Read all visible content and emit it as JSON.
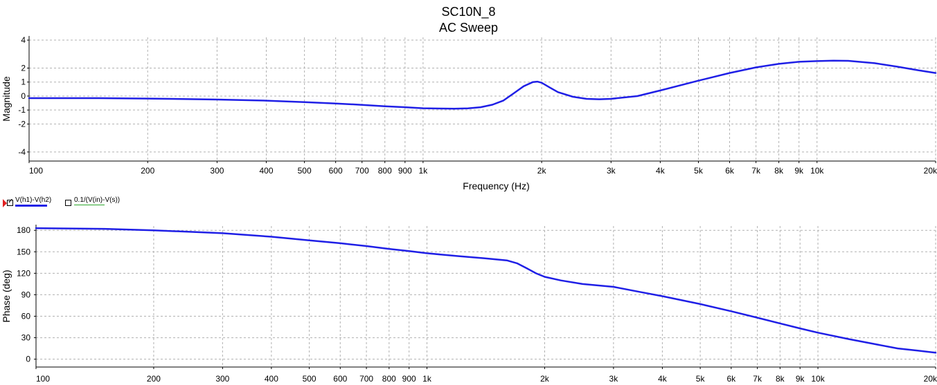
{
  "titles": {
    "main": "SC10N_8",
    "sub": "AC Sweep"
  },
  "legend": [
    {
      "label": "V(h1)-V(h2)",
      "checked": true,
      "color": "#1f1fe6"
    },
    {
      "label": "0.1/(V(in)-V(s))",
      "checked": false,
      "color": "#2aa52a"
    }
  ],
  "colors": {
    "trace": "#1f1fe6",
    "grid": "#b0b0b0"
  },
  "chart_data": [
    {
      "type": "line",
      "xlabel": "Frequency (Hz)",
      "ylabel": "Magnitude",
      "xscale": "log",
      "xlim": [
        100,
        20000
      ],
      "ylim": [
        -4.6,
        4.2
      ],
      "xticks": [
        {
          "v": 100,
          "t": "100"
        },
        {
          "v": 200,
          "t": "200"
        },
        {
          "v": 300,
          "t": "300"
        },
        {
          "v": 400,
          "t": "400"
        },
        {
          "v": 500,
          "t": "500"
        },
        {
          "v": 600,
          "t": "600"
        },
        {
          "v": 700,
          "t": "700"
        },
        {
          "v": 800,
          "t": "800"
        },
        {
          "v": 900,
          "t": "900"
        },
        {
          "v": 1000,
          "t": "1k"
        },
        {
          "v": 2000,
          "t": "2k"
        },
        {
          "v": 3000,
          "t": "3k"
        },
        {
          "v": 4000,
          "t": "4k"
        },
        {
          "v": 5000,
          "t": "5k"
        },
        {
          "v": 6000,
          "t": "6k"
        },
        {
          "v": 7000,
          "t": "7k"
        },
        {
          "v": 8000,
          "t": "8k"
        },
        {
          "v": 9000,
          "t": "9k"
        },
        {
          "v": 10000,
          "t": "10k"
        },
        {
          "v": 20000,
          "t": "20k"
        }
      ],
      "yticks": [
        {
          "v": 4,
          "t": "4"
        },
        {
          "v": 2,
          "t": "2"
        },
        {
          "v": 1,
          "t": "1"
        },
        {
          "v": 0,
          "t": "0"
        },
        {
          "v": -1,
          "t": "-1"
        },
        {
          "v": -2,
          "t": "-2"
        },
        {
          "v": -4,
          "t": "-4"
        }
      ],
      "grid": true,
      "series": [
        {
          "name": "V(h1)-V(h2)",
          "x": [
            100,
            150,
            200,
            300,
            400,
            500,
            600,
            700,
            800,
            900,
            1000,
            1100,
            1200,
            1300,
            1400,
            1500,
            1600,
            1700,
            1800,
            1900,
            1950,
            2000,
            2100,
            2200,
            2400,
            2600,
            2800,
            3000,
            3500,
            4000,
            5000,
            6000,
            7000,
            8000,
            9000,
            10000,
            11000,
            12000,
            14000,
            16000,
            18000,
            20000
          ],
          "y": [
            -0.15,
            -0.15,
            -0.18,
            -0.25,
            -0.33,
            -0.43,
            -0.53,
            -0.63,
            -0.73,
            -0.8,
            -0.87,
            -0.89,
            -0.9,
            -0.88,
            -0.8,
            -0.62,
            -0.32,
            0.2,
            0.7,
            1.0,
            1.03,
            0.95,
            0.6,
            0.28,
            -0.05,
            -0.2,
            -0.23,
            -0.2,
            0.0,
            0.4,
            1.1,
            1.65,
            2.05,
            2.3,
            2.45,
            2.5,
            2.53,
            2.52,
            2.35,
            2.1,
            1.85,
            1.65
          ]
        }
      ]
    },
    {
      "type": "line",
      "xlabel": "",
      "ylabel": "Phase (deg)",
      "xscale": "log",
      "xlim": [
        100,
        20000
      ],
      "ylim": [
        -10,
        186
      ],
      "xticks": [
        {
          "v": 100,
          "t": "100"
        },
        {
          "v": 200,
          "t": "200"
        },
        {
          "v": 300,
          "t": "300"
        },
        {
          "v": 400,
          "t": "400"
        },
        {
          "v": 500,
          "t": "500"
        },
        {
          "v": 600,
          "t": "600"
        },
        {
          "v": 700,
          "t": "700"
        },
        {
          "v": 800,
          "t": "800"
        },
        {
          "v": 900,
          "t": "900"
        },
        {
          "v": 1000,
          "t": "1k"
        },
        {
          "v": 2000,
          "t": "2k"
        },
        {
          "v": 3000,
          "t": "3k"
        },
        {
          "v": 4000,
          "t": "4k"
        },
        {
          "v": 5000,
          "t": "5k"
        },
        {
          "v": 6000,
          "t": "6k"
        },
        {
          "v": 7000,
          "t": "7k"
        },
        {
          "v": 8000,
          "t": "8k"
        },
        {
          "v": 9000,
          "t": "9k"
        },
        {
          "v": 10000,
          "t": "10k"
        },
        {
          "v": 20000,
          "t": "20k"
        }
      ],
      "yticks": [
        {
          "v": 180,
          "t": "180"
        },
        {
          "v": 150,
          "t": "150"
        },
        {
          "v": 120,
          "t": "120"
        },
        {
          "v": 90,
          "t": "90"
        },
        {
          "v": 60,
          "t": "60"
        },
        {
          "v": 30,
          "t": "30"
        },
        {
          "v": 0,
          "t": "0"
        }
      ],
      "grid": true,
      "series": [
        {
          "name": "V(h1)-V(h2)",
          "x": [
            100,
            150,
            200,
            300,
            400,
            500,
            600,
            700,
            800,
            900,
            1000,
            1200,
            1400,
            1600,
            1700,
            1800,
            1900,
            2000,
            2200,
            2500,
            3000,
            3500,
            4000,
            5000,
            6000,
            7000,
            8000,
            9000,
            10000,
            12000,
            14000,
            16000,
            18000,
            20000
          ],
          "y": [
            183,
            182,
            180,
            176,
            171,
            166,
            162,
            158,
            154,
            151,
            148,
            144,
            141,
            138,
            134,
            127,
            120,
            115,
            110,
            105,
            101,
            94,
            88,
            77,
            67,
            58,
            50,
            43,
            37,
            28,
            21,
            15,
            12,
            9
          ]
        }
      ]
    }
  ]
}
